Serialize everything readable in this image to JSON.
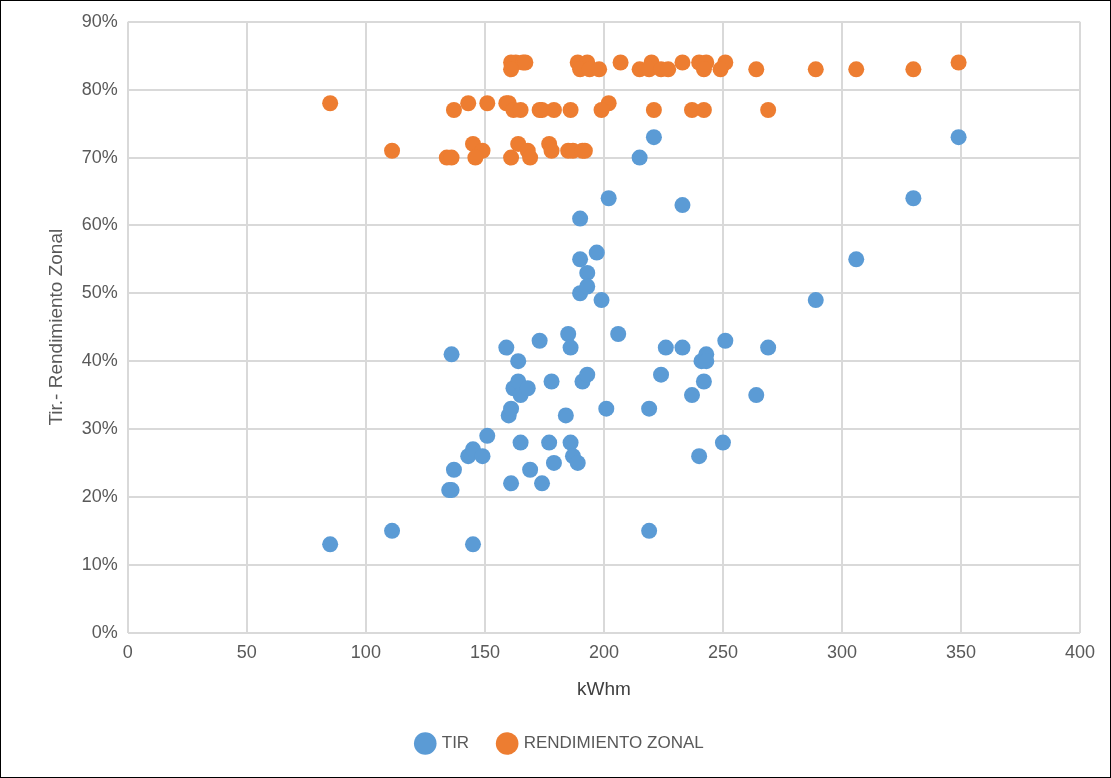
{
  "chart_data": {
    "type": "scatter",
    "xlabel": "kWhm",
    "ylabel": "Tir.- Rendimiento Zonal",
    "xlim": [
      0,
      400
    ],
    "xticks": [
      0,
      50,
      100,
      150,
      200,
      250,
      300,
      350,
      400
    ],
    "ylim": [
      0,
      90
    ],
    "yticks": [
      {
        "value": 0,
        "label": "0%"
      },
      {
        "value": 10,
        "label": "10%"
      },
      {
        "value": 20,
        "label": "20%"
      },
      {
        "value": 30,
        "label": "30%"
      },
      {
        "value": 40,
        "label": "40%"
      },
      {
        "value": 50,
        "label": "50%"
      },
      {
        "value": 60,
        "label": "60%"
      },
      {
        "value": 70,
        "label": "70%"
      },
      {
        "value": 80,
        "label": "80%"
      },
      {
        "value": 90,
        "label": "90%"
      }
    ],
    "grid": true,
    "legend": "bottom",
    "marker": "circle",
    "series": [
      {
        "name": "TIR",
        "color": "#5b9bd5",
        "x": [
          85,
          111,
          135,
          136,
          136,
          137,
          143,
          145,
          145,
          149,
          151,
          159,
          160,
          161,
          161,
          162,
          164,
          164,
          165,
          165,
          168,
          169,
          173,
          174,
          177,
          178,
          179,
          184,
          185,
          186,
          186,
          187,
          189,
          190,
          190,
          190,
          191,
          193,
          193,
          193,
          197,
          199,
          201,
          202,
          206,
          215,
          219,
          219,
          221,
          224,
          226,
          233,
          233,
          237,
          240,
          241,
          242,
          243,
          243,
          250,
          251,
          264,
          269,
          289,
          306,
          330,
          349
        ],
        "values": [
          13,
          15,
          21,
          21,
          41,
          24,
          26,
          27,
          13,
          26,
          29,
          42,
          32,
          33,
          22,
          36,
          40,
          37,
          35,
          28,
          36,
          24,
          43,
          22,
          28,
          37,
          25,
          32,
          44,
          42,
          28,
          26,
          25,
          61,
          55,
          50,
          37,
          53,
          51,
          38,
          56,
          49,
          33,
          64,
          44,
          70,
          33,
          15,
          73,
          38,
          42,
          63,
          42,
          35,
          26,
          40,
          37,
          41,
          40,
          28,
          43,
          35,
          42,
          49,
          55,
          64,
          73
        ]
      },
      {
        "name": "RENDIMIENTO ZONAL",
        "color": "#ed7d31",
        "x": [
          161,
          163,
          166,
          167,
          189,
          193,
          207,
          220,
          233,
          240,
          243,
          251,
          349,
          161,
          190,
          194,
          198,
          215,
          219,
          224,
          227,
          242,
          249,
          264,
          289,
          306,
          330,
          85,
          143,
          151,
          159,
          160,
          202,
          137,
          162,
          165,
          173,
          174,
          179,
          186,
          199,
          221,
          237,
          242,
          269,
          145,
          164,
          177,
          111,
          149,
          168,
          178,
          185,
          187,
          191,
          192,
          134,
          136,
          146,
          161,
          169
        ],
        "values": [
          84,
          84,
          84,
          84,
          84,
          84,
          84,
          84,
          84,
          84,
          84,
          84,
          84,
          83,
          83,
          83,
          83,
          83,
          83,
          83,
          83,
          83,
          83,
          83,
          83,
          83,
          83,
          78,
          78,
          78,
          78,
          78,
          78,
          77,
          77,
          77,
          77,
          77,
          77,
          77,
          77,
          77,
          77,
          77,
          77,
          72,
          72,
          72,
          71,
          71,
          71,
          71,
          71,
          71,
          71,
          71,
          70,
          70,
          70,
          70,
          70
        ]
      }
    ]
  }
}
